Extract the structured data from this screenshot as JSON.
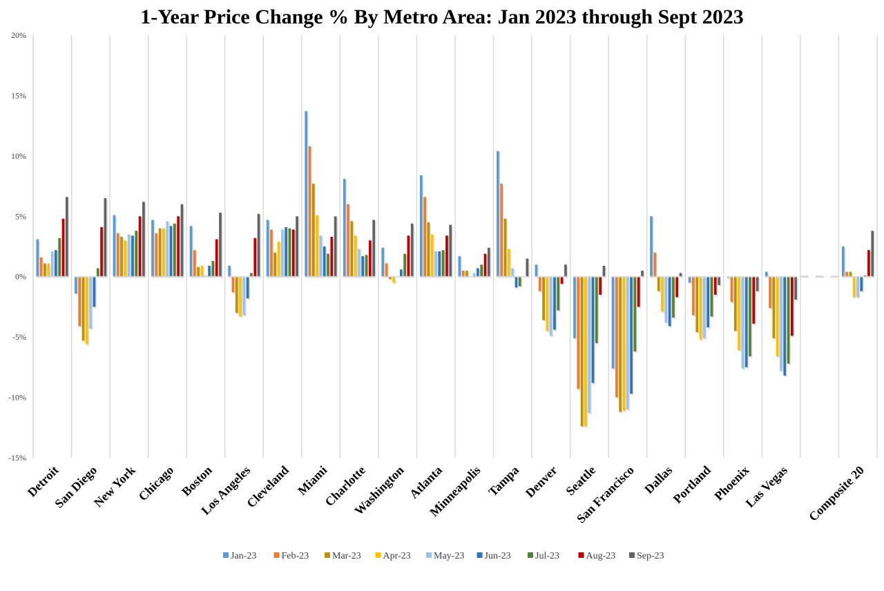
{
  "chart_data": {
    "type": "bar",
    "title": "1-Year Price Change % By Metro Area: Jan 2023 through Sept 2023",
    "xlabel": "",
    "ylabel": "",
    "ylim": [
      -15,
      20
    ],
    "yticks": [
      20,
      15,
      10,
      5,
      0,
      -5,
      -10,
      -15
    ],
    "ytick_labels": [
      "20%",
      "15%",
      "10%",
      "5%",
      "0%",
      "-5%",
      "-10%",
      "-15%"
    ],
    "grid": false,
    "legend_position": "bottom",
    "categories": [
      "Detroit",
      "San Diego",
      "New York",
      "Chicago",
      "Boston",
      "Los Angeles",
      "Cleveland",
      "Miami",
      "Charlotte",
      "Washington",
      "Atlanta",
      "Minneapolis",
      "Tampa",
      "Denver",
      "Seattle",
      "San Francisco",
      "Dallas",
      "Portland",
      "Phoenix",
      "Las Vegas",
      "",
      "Composite 20"
    ],
    "series": [
      {
        "name": "Jan-23",
        "color": "#5B9BD5",
        "values": [
          3.1,
          -1.4,
          5.1,
          4.7,
          4.2,
          0.9,
          4.7,
          13.7,
          8.1,
          2.4,
          8.4,
          1.7,
          10.4,
          1.0,
          -5.1,
          -7.6,
          5.0,
          -0.5,
          -0.1,
          0.4,
          null,
          2.5
        ]
      },
      {
        "name": "Feb-23",
        "color": "#ED7D31",
        "values": [
          1.6,
          -4.1,
          3.6,
          3.6,
          2.2,
          -1.3,
          3.9,
          10.8,
          6.0,
          1.1,
          6.6,
          0.5,
          7.7,
          -1.2,
          -9.3,
          -10.0,
          2.0,
          -3.2,
          -2.1,
          -2.6,
          null,
          0.4
        ]
      },
      {
        "name": "Mar-23",
        "color": "#BF9000",
        "values": [
          1.1,
          -5.3,
          3.3,
          4.0,
          0.8,
          -3.0,
          2.0,
          7.7,
          4.6,
          -0.2,
          4.5,
          0.5,
          4.8,
          -3.6,
          -12.4,
          -11.2,
          -1.2,
          -4.6,
          -4.5,
          -5.1,
          null,
          0.4
        ]
      },
      {
        "name": "Apr-23",
        "color": "#FFC000",
        "values": [
          1.1,
          -5.6,
          3.0,
          4.0,
          0.9,
          -3.3,
          2.9,
          5.1,
          3.4,
          -0.5,
          3.5,
          0.0,
          2.3,
          -4.5,
          -12.4,
          -11.1,
          -2.9,
          -5.2,
          -6.1,
          -6.6,
          null,
          -1.7
        ]
      },
      {
        "name": "May-23",
        "color": "#9DC3E6",
        "values": [
          2.1,
          -4.3,
          3.5,
          4.6,
          0.1,
          -3.2,
          3.9,
          3.4,
          2.3,
          0.0,
          2.1,
          0.3,
          0.7,
          -4.9,
          -11.3,
          -11.0,
          -3.8,
          -5.1,
          -7.6,
          -7.8,
          null,
          -1.7
        ]
      },
      {
        "name": "Jun-23",
        "color": "#2E75B6",
        "values": [
          2.2,
          -2.5,
          3.4,
          4.2,
          0.9,
          -1.8,
          4.1,
          2.5,
          1.7,
          0.6,
          2.1,
          0.7,
          -0.9,
          -4.4,
          -8.8,
          -9.7,
          -4.1,
          -4.2,
          -7.5,
          -8.2,
          null,
          -1.2
        ]
      },
      {
        "name": "Jul-23",
        "color": "#548235",
        "values": [
          3.2,
          0.7,
          3.8,
          4.4,
          1.3,
          0.3,
          4.0,
          1.9,
          1.8,
          1.9,
          2.2,
          1.0,
          -0.8,
          -2.8,
          -5.5,
          -6.2,
          -3.4,
          -3.3,
          -6.6,
          -7.2,
          null,
          0.1
        ]
      },
      {
        "name": "Aug-23",
        "color": "#C00000",
        "values": [
          4.8,
          4.1,
          5.0,
          5.0,
          3.1,
          3.2,
          3.9,
          3.3,
          3.0,
          3.4,
          3.4,
          1.9,
          0.0,
          -0.6,
          -1.5,
          -2.5,
          -1.7,
          -1.5,
          -3.9,
          -4.9,
          null,
          2.2
        ]
      },
      {
        "name": "Sep-23",
        "color": "#636363",
        "values": [
          6.6,
          6.5,
          6.2,
          6.0,
          5.3,
          5.2,
          5.0,
          5.0,
          4.7,
          4.4,
          4.3,
          2.4,
          1.5,
          1.0,
          0.9,
          0.5,
          0.3,
          -0.7,
          -1.2,
          -1.9,
          null,
          3.8
        ]
      }
    ]
  }
}
